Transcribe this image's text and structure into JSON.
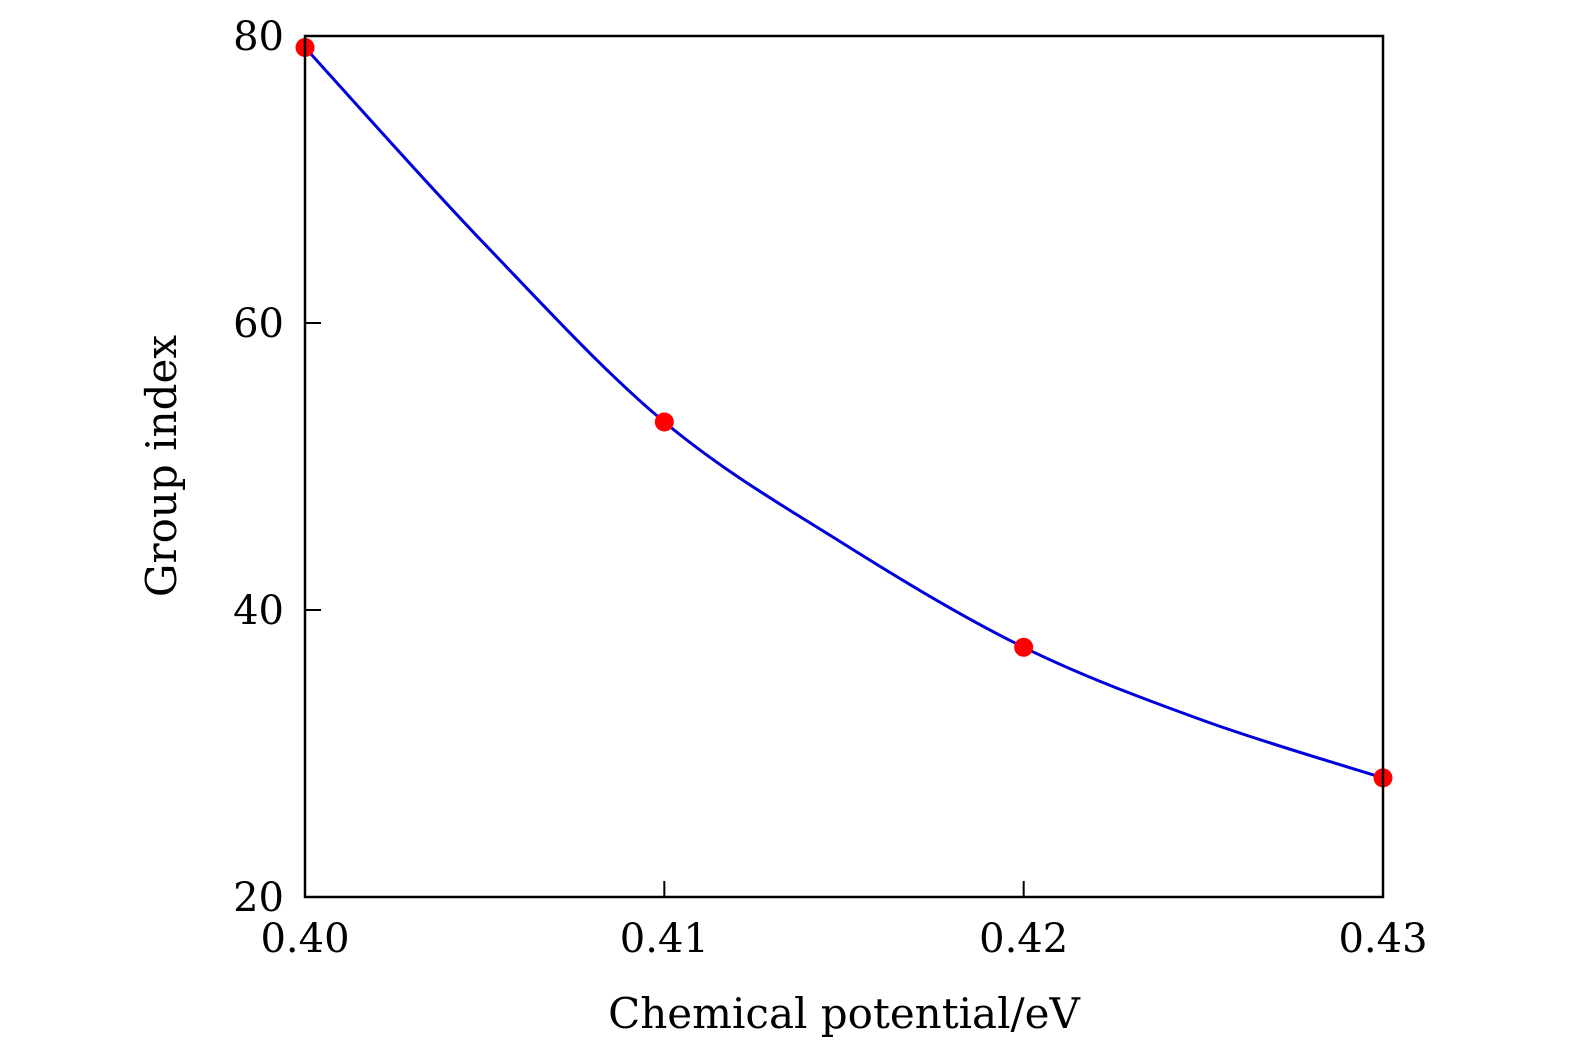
{
  "chart_data": {
    "type": "line",
    "title": "",
    "xlabel": "Chemical potential/eV",
    "ylabel": "Group index",
    "xlim": [
      0.4,
      0.43
    ],
    "ylim": [
      20,
      80
    ],
    "xticks": [
      {
        "value": 0.4,
        "label": "0.40"
      },
      {
        "value": 0.41,
        "label": "0.41"
      },
      {
        "value": 0.42,
        "label": "0.42"
      },
      {
        "value": 0.43,
        "label": "0.43"
      }
    ],
    "yticks": [
      {
        "value": 20,
        "label": "20"
      },
      {
        "value": 40,
        "label": "40"
      },
      {
        "value": 60,
        "label": "60"
      },
      {
        "value": 80,
        "label": "80"
      }
    ],
    "grid": false,
    "legend": "none",
    "series": [
      {
        "style": "line",
        "color": "#0000dd",
        "x": [
          0.4,
          0.405,
          0.41,
          0.415,
          0.42,
          0.425,
          0.43
        ],
        "y": [
          79.2,
          65.5,
          53.1,
          44.6,
          37.4,
          32.3,
          28.3
        ]
      },
      {
        "style": "markers",
        "color": "#ff0000",
        "x": [
          0.4,
          0.41,
          0.42,
          0.43
        ],
        "y": [
          79.2,
          53.1,
          37.4,
          28.3
        ]
      }
    ]
  }
}
